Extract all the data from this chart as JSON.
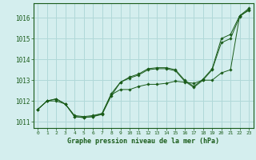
{
  "background_color": "#d4eeee",
  "plot_bg_color": "#d4eeee",
  "grid_color": "#b0d8d8",
  "line_color": "#1a5c1a",
  "marker_color": "#1a5c1a",
  "title": "Graphe pression niveau de la mer (hPa)",
  "xlim": [
    -0.5,
    23.5
  ],
  "ylim": [
    1010.7,
    1016.7
  ],
  "yticks": [
    1011,
    1012,
    1013,
    1014,
    1015,
    1016
  ],
  "xticks": [
    0,
    1,
    2,
    3,
    4,
    5,
    6,
    7,
    8,
    9,
    10,
    11,
    12,
    13,
    14,
    15,
    16,
    17,
    18,
    19,
    20,
    21,
    22,
    23
  ],
  "series": [
    [
      1011.6,
      1012.0,
      1012.0,
      1011.85,
      1011.3,
      1011.25,
      1011.3,
      1011.4,
      1012.3,
      1012.55,
      1012.55,
      1012.7,
      1012.8,
      1012.8,
      1012.85,
      1012.95,
      1012.9,
      1012.85,
      1013.0,
      1013.0,
      1013.35,
      1013.5,
      1016.1,
      1016.35
    ],
    [
      1011.6,
      1012.0,
      1012.1,
      1011.85,
      1011.25,
      1011.2,
      1011.25,
      1011.35,
      1012.25,
      1012.9,
      1013.1,
      1013.25,
      1013.5,
      1013.55,
      1013.55,
      1013.45,
      1012.95,
      1012.65,
      1013.0,
      1013.5,
      1014.8,
      1015.0,
      1016.05,
      1016.4
    ],
    [
      1011.6,
      1012.0,
      1012.1,
      1011.85,
      1011.25,
      1011.2,
      1011.25,
      1011.4,
      1012.35,
      1012.9,
      1013.15,
      1013.3,
      1013.55,
      1013.6,
      1013.6,
      1013.5,
      1013.0,
      1012.7,
      1013.05,
      1013.55,
      1015.0,
      1015.2,
      1016.1,
      1016.45
    ]
  ]
}
